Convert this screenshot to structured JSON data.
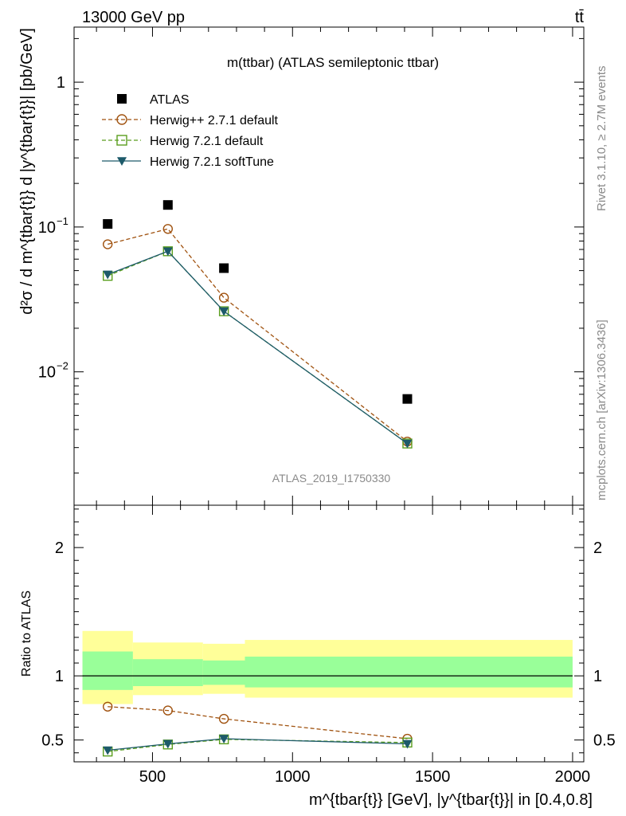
{
  "header": {
    "left": "13000 GeV pp",
    "right": "tt̄"
  },
  "side": {
    "rivet": "Rivet 3.1.10, ≥ 2.7M events",
    "mcplots": "mcplots.cern.ch [arXiv:1306.3436]"
  },
  "chart_data": [
    {
      "type": "scatter",
      "title": "m(ttbar) (ATLAS semileptonic ttbar)",
      "analysis_tag": "ATLAS_2019_I1750330",
      "ylabel": "d²σ / d m^{tbar{t}} d |y^{tbar{t}}| [pb/GeV]",
      "yscale": "log",
      "xlim": [
        220,
        2040
      ],
      "ylim": [
        0.0012,
        2.4
      ],
      "y_ticks": [
        {
          "value": 1,
          "label": "1"
        },
        {
          "value": 0.1,
          "label": "10",
          "exp": "−1"
        },
        {
          "value": 0.01,
          "label": "10",
          "exp": "−2"
        }
      ],
      "legend_position": "top-left",
      "x": [
        340,
        555,
        755,
        1410
      ],
      "series": [
        {
          "name": "ATLAS",
          "color": "#000000",
          "marker": "square-filled",
          "values": [
            0.105,
            0.142,
            0.052,
            0.0065
          ]
        },
        {
          "name": "Herwig++ 2.7.1 default",
          "color": "#a0520f",
          "marker": "circle-open",
          "line": "dashed",
          "values": [
            0.076,
            0.097,
            0.0325,
            0.0033
          ]
        },
        {
          "name": "Herwig 7.2.1 default",
          "color": "#5a9e1e",
          "marker": "square-open",
          "line": "dashed",
          "values": [
            0.046,
            0.068,
            0.0262,
            0.0032
          ]
        },
        {
          "name": "Herwig 7.2.1 softTune",
          "color": "#1d5a6a",
          "marker": "triangle-down-filled",
          "line": "solid",
          "values": [
            0.047,
            0.068,
            0.0262,
            0.0032
          ]
        }
      ]
    },
    {
      "type": "line",
      "ylabel": "Ratio to ATLAS",
      "xlabel": "m^{tbar{t}} [GeV], |y^{tbar{t}}| in [0.4,0.8]",
      "xlim": [
        220,
        2040
      ],
      "ylim": [
        0.33,
        2.33
      ],
      "x_ticks": [
        500,
        1000,
        1500,
        2000
      ],
      "y_ticks": [
        0.5,
        1,
        2
      ],
      "bands": [
        {
          "x0": 250,
          "x1": 430,
          "yellow": [
            0.78,
            1.35
          ],
          "green": [
            0.89,
            1.19
          ]
        },
        {
          "x0": 430,
          "x1": 680,
          "yellow": [
            0.85,
            1.26
          ],
          "green": [
            0.92,
            1.13
          ]
        },
        {
          "x0": 680,
          "x1": 830,
          "yellow": [
            0.86,
            1.25
          ],
          "green": [
            0.93,
            1.12
          ]
        },
        {
          "x0": 830,
          "x1": 2000,
          "yellow": [
            0.83,
            1.28
          ],
          "green": [
            0.91,
            1.15
          ]
        }
      ],
      "x": [
        340,
        555,
        755,
        1410
      ],
      "series": [
        {
          "name": "Herwig++ 2.7.1 default",
          "color": "#a0520f",
          "marker": "circle-open",
          "line": "dashed",
          "values": [
            0.76,
            0.73,
            0.665,
            0.51
          ]
        },
        {
          "name": "Herwig 7.2.1 default",
          "color": "#5a9e1e",
          "marker": "square-open",
          "line": "dashed",
          "values": [
            0.41,
            0.465,
            0.505,
            0.48
          ]
        },
        {
          "name": "Herwig 7.2.1 softTune",
          "color": "#1d5a6a",
          "marker": "triangle-down-filled",
          "line": "solid",
          "values": [
            0.42,
            0.47,
            0.51,
            0.47
          ]
        }
      ]
    }
  ]
}
